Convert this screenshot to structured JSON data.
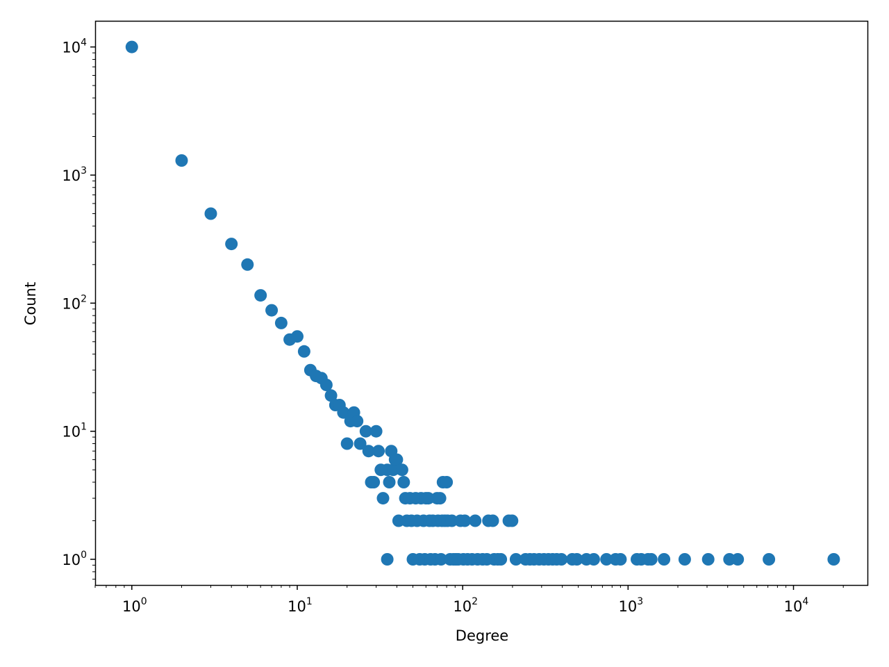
{
  "chart_data": {
    "type": "scatter",
    "title": "",
    "xlabel": "Degree",
    "ylabel": "Count",
    "xscale": "log",
    "yscale": "log",
    "xlim": [
      0.6,
      28000
    ],
    "ylim": [
      0.63,
      16000
    ],
    "grid": false,
    "marker_color": "#1f77b4",
    "x_ticks": [
      {
        "base": "10",
        "exp": "0",
        "value": 1
      },
      {
        "base": "10",
        "exp": "1",
        "value": 10
      },
      {
        "base": "10",
        "exp": "2",
        "value": 100
      },
      {
        "base": "10",
        "exp": "3",
        "value": 1000
      },
      {
        "base": "10",
        "exp": "4",
        "value": 10000
      }
    ],
    "y_ticks": [
      {
        "base": "10",
        "exp": "0",
        "value": 1
      },
      {
        "base": "10",
        "exp": "1",
        "value": 10
      },
      {
        "base": "10",
        "exp": "2",
        "value": 100
      },
      {
        "base": "10",
        "exp": "3",
        "value": 1000
      },
      {
        "base": "10",
        "exp": "4",
        "value": 10000
      }
    ],
    "points": [
      [
        1,
        10000
      ],
      [
        2,
        1300
      ],
      [
        3,
        500
      ],
      [
        4,
        290
      ],
      [
        5,
        200
      ],
      [
        6,
        115
      ],
      [
        7,
        88
      ],
      [
        8,
        70
      ],
      [
        9,
        52
      ],
      [
        10,
        55
      ],
      [
        11,
        42
      ],
      [
        12,
        30
      ],
      [
        13,
        27
      ],
      [
        14,
        26
      ],
      [
        15,
        23
      ],
      [
        16,
        19
      ],
      [
        17,
        16
      ],
      [
        18,
        16
      ],
      [
        19,
        14
      ],
      [
        20,
        8
      ],
      [
        21,
        12
      ],
      [
        22,
        14
      ],
      [
        23,
        12
      ],
      [
        24,
        8
      ],
      [
        26,
        10
      ],
      [
        27,
        7
      ],
      [
        28,
        4
      ],
      [
        29,
        4
      ],
      [
        30,
        10
      ],
      [
        31,
        7
      ],
      [
        32,
        5
      ],
      [
        33,
        3
      ],
      [
        35,
        5
      ],
      [
        35,
        1
      ],
      [
        36,
        4
      ],
      [
        37,
        7
      ],
      [
        38,
        5
      ],
      [
        39,
        6
      ],
      [
        40,
        6
      ],
      [
        41,
        2
      ],
      [
        43,
        5
      ],
      [
        44,
        4
      ],
      [
        45,
        3
      ],
      [
        46,
        2
      ],
      [
        48,
        3
      ],
      [
        49,
        2
      ],
      [
        50,
        1
      ],
      [
        52,
        3
      ],
      [
        53,
        2
      ],
      [
        55,
        1
      ],
      [
        56,
        3
      ],
      [
        58,
        2
      ],
      [
        59,
        1
      ],
      [
        60,
        3
      ],
      [
        62,
        3
      ],
      [
        63,
        2
      ],
      [
        64,
        1
      ],
      [
        66,
        2
      ],
      [
        68,
        1
      ],
      [
        70,
        3
      ],
      [
        71,
        2
      ],
      [
        73,
        3
      ],
      [
        74,
        1
      ],
      [
        75,
        2
      ],
      [
        76,
        4
      ],
      [
        78,
        2
      ],
      [
        80,
        4
      ],
      [
        81,
        2
      ],
      [
        84,
        1
      ],
      [
        86,
        2
      ],
      [
        88,
        1
      ],
      [
        91,
        1
      ],
      [
        94,
        1
      ],
      [
        97,
        2
      ],
      [
        101,
        1
      ],
      [
        103,
        2
      ],
      [
        107,
        1
      ],
      [
        114,
        1
      ],
      [
        119,
        2
      ],
      [
        123,
        1
      ],
      [
        132,
        1
      ],
      [
        140,
        1
      ],
      [
        143,
        2
      ],
      [
        152,
        2
      ],
      [
        155,
        1
      ],
      [
        163,
        1
      ],
      [
        170,
        1
      ],
      [
        190,
        2
      ],
      [
        199,
        2
      ],
      [
        210,
        1
      ],
      [
        240,
        1
      ],
      [
        255,
        1
      ],
      [
        270,
        1
      ],
      [
        290,
        1
      ],
      [
        310,
        1
      ],
      [
        330,
        1
      ],
      [
        350,
        1
      ],
      [
        370,
        1
      ],
      [
        395,
        1
      ],
      [
        460,
        1
      ],
      [
        490,
        1
      ],
      [
        560,
        1
      ],
      [
        620,
        1
      ],
      [
        740,
        1
      ],
      [
        840,
        1
      ],
      [
        900,
        1
      ],
      [
        1130,
        1
      ],
      [
        1200,
        1
      ],
      [
        1320,
        1
      ],
      [
        1380,
        1
      ],
      [
        1650,
        1
      ],
      [
        2200,
        1
      ],
      [
        3050,
        1
      ],
      [
        4100,
        1
      ],
      [
        4600,
        1
      ],
      [
        7100,
        1
      ],
      [
        17500,
        1
      ]
    ]
  }
}
